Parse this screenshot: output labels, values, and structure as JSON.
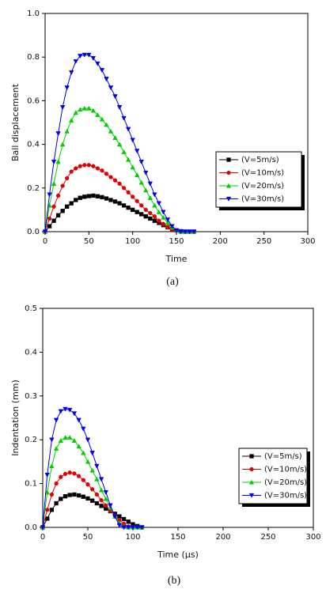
{
  "chart_data": [
    {
      "type": "line",
      "caption": "(a)",
      "xlabel": "Time",
      "ylabel": "Ball displacement",
      "xlim": [
        0,
        300
      ],
      "xticks": [
        0,
        50,
        100,
        150,
        200,
        250,
        300
      ],
      "ylim": [
        0,
        1.0
      ],
      "yticks": [
        {
          "value": 0,
          "label": "0.0"
        },
        0.2,
        0.4,
        0.6,
        0.8,
        {
          "value": 1.0,
          "label": "1.0"
        }
      ],
      "legend": "center right",
      "x": [
        0,
        5,
        10,
        15,
        20,
        25,
        30,
        35,
        40,
        45,
        50,
        55,
        60,
        65,
        70,
        75,
        80,
        85,
        90,
        95,
        100,
        105,
        110,
        115,
        120,
        125,
        130,
        135,
        140,
        145,
        150,
        155,
        160,
        165,
        170
      ],
      "series": [
        {
          "name": "(V=5m/s)",
          "color": "#000000",
          "marker": "square",
          "values": [
            0,
            0.025,
            0.05,
            0.075,
            0.095,
            0.115,
            0.13,
            0.145,
            0.155,
            0.16,
            0.163,
            0.165,
            0.162,
            0.158,
            0.152,
            0.145,
            0.138,
            0.13,
            0.12,
            0.11,
            0.1,
            0.09,
            0.08,
            0.07,
            0.06,
            0.05,
            0.04,
            0.03,
            0.02,
            0.012,
            0.006,
            0.002,
            0,
            0,
            0
          ]
        },
        {
          "name": "(V=10m/s)",
          "color": "#e00000",
          "marker": "circle",
          "values": [
            0,
            0.06,
            0.115,
            0.165,
            0.21,
            0.245,
            0.275,
            0.29,
            0.3,
            0.305,
            0.305,
            0.3,
            0.29,
            0.28,
            0.265,
            0.25,
            0.235,
            0.22,
            0.2,
            0.18,
            0.16,
            0.14,
            0.12,
            0.1,
            0.085,
            0.07,
            0.05,
            0.035,
            0.02,
            0.01,
            0.003,
            0,
            0,
            0,
            0
          ]
        },
        {
          "name": "(V=20m/s)",
          "color": "#00d000",
          "marker": "triangle-up",
          "values": [
            0,
            0.12,
            0.22,
            0.32,
            0.4,
            0.46,
            0.51,
            0.545,
            0.56,
            0.565,
            0.565,
            0.555,
            0.535,
            0.515,
            0.49,
            0.46,
            0.43,
            0.4,
            0.365,
            0.33,
            0.295,
            0.26,
            0.225,
            0.19,
            0.155,
            0.12,
            0.09,
            0.065,
            0.04,
            0.02,
            0.005,
            0,
            0,
            0,
            0
          ]
        },
        {
          "name": "(V=30m/s)",
          "color": "#0000ee",
          "marker": "triangle-down",
          "values": [
            0,
            0.17,
            0.32,
            0.45,
            0.57,
            0.66,
            0.73,
            0.78,
            0.805,
            0.81,
            0.81,
            0.795,
            0.77,
            0.74,
            0.7,
            0.66,
            0.62,
            0.57,
            0.52,
            0.47,
            0.42,
            0.37,
            0.32,
            0.27,
            0.22,
            0.17,
            0.13,
            0.09,
            0.055,
            0.025,
            0.005,
            0,
            0,
            0,
            0
          ]
        }
      ]
    },
    {
      "type": "line",
      "caption": "(b)",
      "xlabel": "Time (μs)",
      "ylabel": "Indentation (mm)",
      "xlim": [
        0,
        300
      ],
      "xticks": [
        0,
        50,
        100,
        150,
        200,
        250,
        300
      ],
      "ylim": [
        0,
        0.5
      ],
      "yticks": [
        {
          "value": 0,
          "label": "0.0"
        },
        0.1,
        0.2,
        0.3,
        0.4,
        0.5
      ],
      "legend": "lower right",
      "x": [
        0,
        5,
        10,
        15,
        20,
        25,
        30,
        35,
        40,
        45,
        50,
        55,
        60,
        65,
        70,
        75,
        80,
        85,
        90,
        95,
        100,
        105,
        110
      ],
      "series": [
        {
          "name": "(V=5m/s)",
          "color": "#000000",
          "marker": "square",
          "values": [
            0,
            0.02,
            0.04,
            0.055,
            0.065,
            0.071,
            0.074,
            0.075,
            0.073,
            0.07,
            0.066,
            0.061,
            0.055,
            0.049,
            0.043,
            0.037,
            0.031,
            0.025,
            0.019,
            0.013,
            0.007,
            0.003,
            0
          ]
        },
        {
          "name": "(V=10m/s)",
          "color": "#e00000",
          "marker": "circle",
          "values": [
            0,
            0.04,
            0.075,
            0.1,
            0.115,
            0.122,
            0.125,
            0.123,
            0.117,
            0.108,
            0.098,
            0.087,
            0.075,
            0.062,
            0.05,
            0.038,
            0.027,
            0.017,
            0.008,
            0.002,
            0,
            0,
            0
          ]
        },
        {
          "name": "(V=20m/s)",
          "color": "#00d000",
          "marker": "triangle-up",
          "values": [
            0,
            0.08,
            0.14,
            0.18,
            0.198,
            0.205,
            0.205,
            0.198,
            0.185,
            0.17,
            0.15,
            0.13,
            0.11,
            0.085,
            0.065,
            0.045,
            0.025,
            0.01,
            0.002,
            0,
            0,
            0,
            0
          ]
        },
        {
          "name": "(V=30m/s)",
          "color": "#0000ee",
          "marker": "triangle-down",
          "values": [
            0,
            0.12,
            0.2,
            0.245,
            0.265,
            0.27,
            0.268,
            0.26,
            0.245,
            0.225,
            0.2,
            0.17,
            0.14,
            0.11,
            0.08,
            0.05,
            0.025,
            0.005,
            0,
            0,
            0,
            0,
            0
          ]
        }
      ]
    }
  ]
}
